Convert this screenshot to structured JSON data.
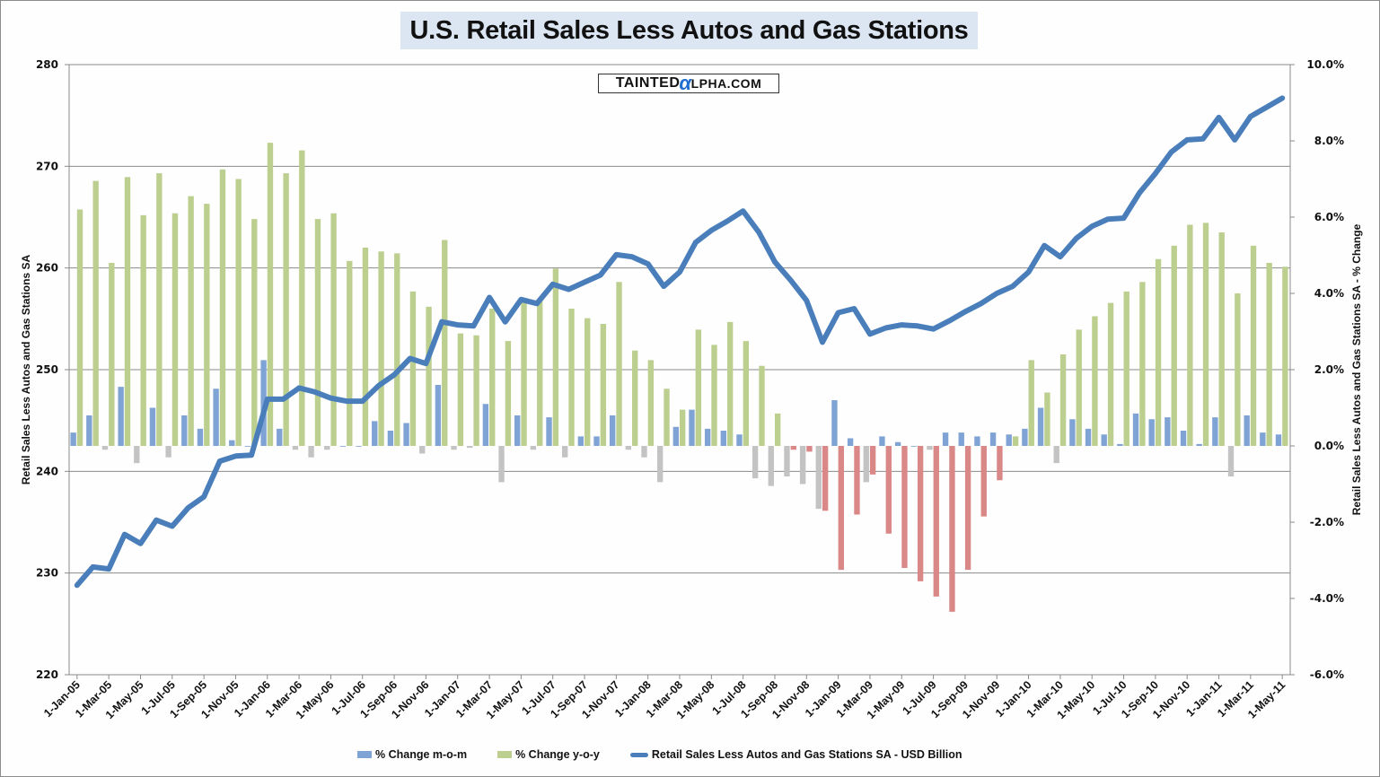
{
  "chart_data": {
    "type": "bar+line",
    "title": "U.S. Retail Sales Less Autos and Gas Stations",
    "watermark": {
      "prefix": "TAINTED",
      "alpha": "α",
      "suffix": "LPHA.COM"
    },
    "ylabel_left": "Retail Sales Less Autos and Gas Stations SA",
    "ylabel_right": "Retail Sales Less Autos and Gas Stations SA - % Change",
    "ylim_left": [
      220,
      280
    ],
    "ylim_right": [
      -6.0,
      10.0
    ],
    "yticks_left": [
      "280",
      "270",
      "260",
      "250",
      "240",
      "230",
      "220"
    ],
    "yticks_right": [
      "10.0%",
      "8.0%",
      "6.0%",
      "4.0%",
      "2.0%",
      "0.0%",
      "-2.0%",
      "-4.0%",
      "-6.0%"
    ],
    "grid": "horizontal",
    "legend_position": "bottom",
    "x_tick_labels": [
      "1-Jan-05",
      "1-Mar-05",
      "1-May-05",
      "1-Jul-05",
      "1-Sep-05",
      "1-Nov-05",
      "1-Jan-06",
      "1-Mar-06",
      "1-May-06",
      "1-Jul-06",
      "1-Sep-06",
      "1-Nov-06",
      "1-Jan-07",
      "1-Mar-07",
      "1-May-07",
      "1-Jul-07",
      "1-Sep-07",
      "1-Nov-07",
      "1-Jan-08",
      "1-Mar-08",
      "1-May-08",
      "1-Jul-08",
      "1-Sep-08",
      "1-Nov-08",
      "1-Jan-09",
      "1-Mar-09",
      "1-May-09",
      "1-Jul-09",
      "1-Sep-09",
      "1-Nov-09",
      "1-Jan-10",
      "1-Mar-10",
      "1-May-10",
      "1-Jul-10",
      "1-Sep-10",
      "1-Nov-10",
      "1-Jan-11",
      "1-Mar-11",
      "1-May-11"
    ],
    "x": [
      "Jan-05",
      "Feb-05",
      "Mar-05",
      "Apr-05",
      "May-05",
      "Jun-05",
      "Jul-05",
      "Aug-05",
      "Sep-05",
      "Oct-05",
      "Nov-05",
      "Dec-05",
      "Jan-06",
      "Feb-06",
      "Mar-06",
      "Apr-06",
      "May-06",
      "Jun-06",
      "Jul-06",
      "Aug-06",
      "Sep-06",
      "Oct-06",
      "Nov-06",
      "Dec-06",
      "Jan-07",
      "Feb-07",
      "Mar-07",
      "Apr-07",
      "May-07",
      "Jun-07",
      "Jul-07",
      "Aug-07",
      "Sep-07",
      "Oct-07",
      "Nov-07",
      "Dec-07",
      "Jan-08",
      "Feb-08",
      "Mar-08",
      "Apr-08",
      "May-08",
      "Jun-08",
      "Jul-08",
      "Aug-08",
      "Sep-08",
      "Oct-08",
      "Nov-08",
      "Dec-08",
      "Jan-09",
      "Feb-09",
      "Mar-09",
      "Apr-09",
      "May-09",
      "Jun-09",
      "Jul-09",
      "Aug-09",
      "Sep-09",
      "Oct-09",
      "Nov-09",
      "Dec-09",
      "Jan-10",
      "Feb-10",
      "Mar-10",
      "Apr-10",
      "May-10",
      "Jun-10",
      "Jul-10",
      "Aug-10",
      "Sep-10",
      "Oct-10",
      "Nov-10",
      "Dec-10",
      "Jan-11",
      "Feb-11",
      "Mar-11",
      "Apr-11",
      "May-11"
    ],
    "series": [
      {
        "name": "% Change m-o-m",
        "axis": "right",
        "kind": "bar",
        "color_positive": "#7fa3d5",
        "color_negative": "#c3c3c3",
        "values": [
          0.35,
          0.8,
          -0.1,
          1.55,
          -0.45,
          1.0,
          -0.3,
          0.8,
          0.45,
          1.5,
          0.15,
          0.0,
          2.25,
          0.45,
          -0.1,
          -0.3,
          -0.1,
          0.0,
          0.0,
          0.65,
          0.4,
          0.6,
          -0.2,
          1.6,
          -0.1,
          -0.05,
          1.1,
          -0.95,
          0.8,
          -0.1,
          0.75,
          -0.3,
          0.25,
          0.25,
          0.8,
          -0.1,
          -0.3,
          -0.95,
          0.5,
          0.95,
          0.45,
          0.4,
          0.3,
          -0.85,
          -1.05,
          -0.8,
          -1.0,
          -1.65,
          1.2,
          0.2,
          -0.95,
          0.25,
          0.1,
          0.0,
          -0.1,
          0.35,
          0.35,
          0.25,
          0.35,
          0.3,
          0.45,
          1.0,
          -0.45,
          0.7,
          0.45,
          0.3,
          0.05,
          0.85,
          0.7,
          0.75,
          0.4,
          0.05,
          0.75,
          -0.8,
          0.8,
          0.35,
          0.3
        ]
      },
      {
        "name": "% Change y-o-y",
        "axis": "right",
        "kind": "bar",
        "color_positive": "#bccf8f",
        "color_negative": "#d98787",
        "values": [
          6.2,
          6.95,
          4.8,
          7.05,
          6.05,
          7.15,
          6.1,
          6.55,
          6.35,
          7.25,
          7.0,
          5.95,
          7.95,
          7.15,
          7.75,
          5.95,
          6.1,
          4.85,
          5.2,
          5.1,
          5.05,
          4.05,
          3.65,
          5.4,
          2.95,
          2.9,
          3.6,
          2.75,
          3.85,
          3.85,
          4.65,
          3.6,
          3.35,
          3.2,
          4.3,
          2.5,
          2.25,
          1.5,
          0.95,
          3.05,
          2.65,
          3.25,
          2.75,
          2.1,
          0.85,
          -0.1,
          -0.15,
          -1.7,
          -3.25,
          -1.8,
          -0.75,
          -2.3,
          -3.2,
          -3.55,
          -3.95,
          -4.35,
          -3.25,
          -1.85,
          -0.9,
          0.25,
          2.25,
          1.4,
          2.4,
          3.05,
          3.4,
          3.75,
          4.05,
          4.3,
          4.9,
          5.25,
          5.8,
          5.85,
          5.6,
          4.0,
          5.25,
          4.8,
          4.7
        ]
      },
      {
        "name": "Retail Sales Less Autos and Gas Stations SA - USD Billion",
        "axis": "left",
        "kind": "line",
        "color": "#4a7ebb",
        "values": [
          228.8,
          230.6,
          230.4,
          233.8,
          232.9,
          235.2,
          234.6,
          236.4,
          237.5,
          241.0,
          241.5,
          241.6,
          247.1,
          247.1,
          248.2,
          247.8,
          247.2,
          246.9,
          246.9,
          248.4,
          249.5,
          251.1,
          250.6,
          254.7,
          254.4,
          254.3,
          257.1,
          254.7,
          256.9,
          256.5,
          258.4,
          257.9,
          258.6,
          259.3,
          261.3,
          261.1,
          260.4,
          258.2,
          259.6,
          262.5,
          263.7,
          264.6,
          265.6,
          263.5,
          260.6,
          258.8,
          256.8,
          252.7,
          255.6,
          256.0,
          253.5,
          254.1,
          254.4,
          254.3,
          254.0,
          254.8,
          255.7,
          256.5,
          257.5,
          258.2,
          259.6,
          262.2,
          261.1,
          262.9,
          264.1,
          264.8,
          264.9,
          267.4,
          269.3,
          271.4,
          272.6,
          272.7,
          274.8,
          272.6,
          274.9,
          275.8,
          276.7
        ]
      }
    ]
  },
  "legend": {
    "items": [
      {
        "label": "% Change m-o-m",
        "color": "#7fa3d5"
      },
      {
        "label": "% Change y-o-y",
        "color": "#bccf8f"
      },
      {
        "label": "Retail Sales Less Autos and Gas Stations SA - USD Billion",
        "color": "#4a7ebb"
      }
    ]
  }
}
